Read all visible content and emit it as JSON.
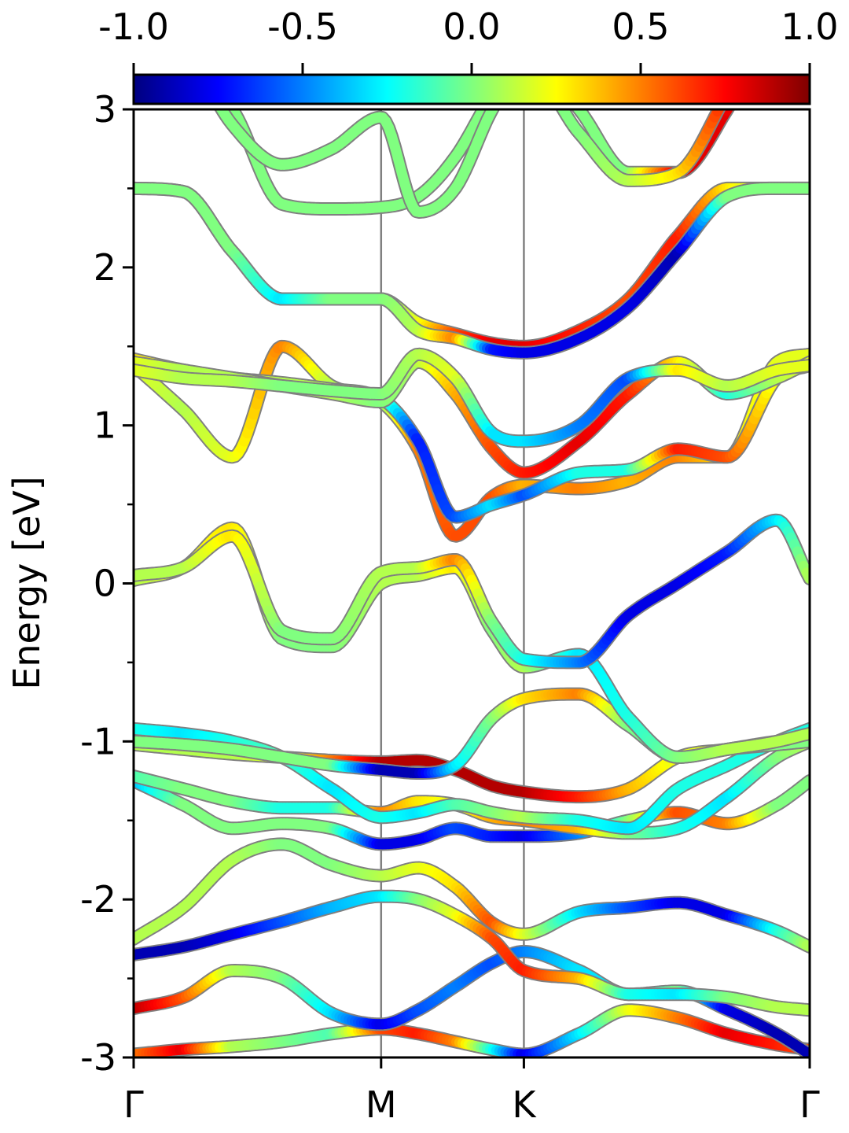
{
  "chart_data": {
    "type": "line",
    "title": "",
    "xlabel": "",
    "ylabel": "Energy [eV]",
    "ylim": [
      -3,
      3
    ],
    "yticks": [
      {
        "value": 3,
        "label": "3"
      },
      {
        "value": 2,
        "label": "2"
      },
      {
        "value": 1,
        "label": "1"
      },
      {
        "value": 0,
        "label": "0"
      },
      {
        "value": -1,
        "label": "-1"
      },
      {
        "value": -2,
        "label": "-2"
      },
      {
        "value": -3,
        "label": "-3"
      }
    ],
    "yminor": [
      2.5,
      1.5,
      0.5,
      -0.5,
      -1.5,
      -2.5
    ],
    "kpath": [
      {
        "label": "Γ",
        "pos": 0.0
      },
      {
        "label": "M",
        "pos": 1.0
      },
      {
        "label": "K",
        "pos": 1.577
      },
      {
        "label": "Γ",
        "pos": 2.732
      }
    ],
    "colorbar": {
      "colormap": "jet",
      "range": [
        -1.0,
        1.0
      ],
      "ticks": [
        {
          "value": -1.0,
          "label": "-1.0"
        },
        {
          "value": -0.5,
          "label": "-0.5"
        },
        {
          "value": 0.0,
          "label": "0.0"
        },
        {
          "value": 0.5,
          "label": "0.5"
        },
        {
          "value": 1.0,
          "label": "1.0"
        }
      ]
    },
    "colors": {
      "divider": "#808080",
      "frame": "#000000",
      "band_edge": "#808080"
    },
    "bands": [
      {
        "k": [
          0,
          0.2,
          0.4,
          0.6,
          0.8,
          1.0,
          1.15,
          1.3,
          1.45,
          1.577,
          1.8,
          2.0,
          2.2,
          2.4,
          2.6,
          2.732
        ],
        "e": [
          -2.98,
          -2.95,
          -2.93,
          -2.9,
          -2.85,
          -2.82,
          -2.85,
          -2.9,
          -2.95,
          -2.98,
          -2.85,
          -2.7,
          -2.75,
          -2.85,
          -2.92,
          -2.95
        ],
        "c": [
          0.5,
          0.8,
          0.1,
          0,
          -0.1,
          0.6,
          0.7,
          0.5,
          -0.2,
          -0.8,
          -0.3,
          0.2,
          0.5,
          0.8,
          0.7,
          0.6
        ]
      },
      {
        "k": [
          0,
          0.2,
          0.4,
          0.6,
          0.8,
          1.0,
          1.15,
          1.3,
          1.45,
          1.577,
          1.8,
          2.0,
          2.2,
          2.4,
          2.6,
          2.732
        ],
        "e": [
          -2.69,
          -2.62,
          -2.45,
          -2.5,
          -2.72,
          -2.79,
          -2.7,
          -2.55,
          -2.4,
          -2.33,
          -2.45,
          -2.6,
          -2.58,
          -2.7,
          -2.85,
          -2.98
        ],
        "c": [
          0.9,
          0.6,
          0.1,
          0,
          -0.3,
          -0.8,
          -0.6,
          -0.5,
          -0.6,
          -0.5,
          -0.3,
          -0.3,
          0,
          -0.8,
          -0.9,
          -0.9
        ]
      },
      {
        "k": [
          0,
          0.2,
          0.4,
          0.6,
          0.8,
          1.0,
          1.15,
          1.3,
          1.45,
          1.577,
          1.8,
          2.0,
          2.2,
          2.4,
          2.6,
          2.732
        ],
        "e": [
          -2.35,
          -2.3,
          -2.22,
          -2.14,
          -2.05,
          -1.98,
          -2.0,
          -2.1,
          -2.25,
          -2.45,
          -2.5,
          -2.6,
          -2.6,
          -2.62,
          -2.68,
          -2.7
        ],
        "c": [
          -0.9,
          -0.9,
          -0.8,
          -0.6,
          -0.4,
          -0.3,
          0,
          0.2,
          0.6,
          0.7,
          0.4,
          -0.2,
          -0.3,
          0,
          0.1,
          0.1
        ]
      },
      {
        "k": [
          0,
          0.2,
          0.4,
          0.6,
          0.8,
          1.0,
          1.15,
          1.3,
          1.45,
          1.577,
          1.8,
          2.0,
          2.2,
          2.4,
          2.6,
          2.732
        ],
        "e": [
          -2.25,
          -2.05,
          -1.75,
          -1.65,
          -1.78,
          -1.85,
          -1.8,
          -1.92,
          -2.15,
          -2.22,
          -2.08,
          -2.05,
          -2.02,
          -2.1,
          -2.2,
          -2.3
        ],
        "c": [
          0.1,
          0.1,
          0.1,
          0,
          0,
          0.1,
          0.2,
          0.3,
          0.6,
          0.2,
          -0.3,
          -0.6,
          -0.8,
          -0.8,
          -0.2,
          0.1
        ]
      },
      {
        "k": [
          0,
          0.2,
          0.4,
          0.6,
          0.8,
          1.0,
          1.15,
          1.3,
          1.45,
          1.577,
          1.8,
          2.0,
          2.2,
          2.4,
          2.6,
          2.732
        ],
        "e": [
          -1.25,
          -1.4,
          -1.55,
          -1.52,
          -1.55,
          -1.65,
          -1.62,
          -1.55,
          -1.6,
          -1.6,
          -1.58,
          -1.5,
          -1.45,
          -1.52,
          -1.4,
          -1.25
        ],
        "c": [
          -0.4,
          0,
          0,
          0,
          0,
          -0.8,
          -0.8,
          -0.6,
          -0.7,
          -0.8,
          -0.5,
          0,
          0.6,
          0.5,
          0,
          0
        ]
      },
      {
        "k": [
          0,
          0.2,
          0.4,
          0.6,
          0.8,
          1.0,
          1.15,
          1.3,
          1.45,
          1.577,
          1.8,
          2.0,
          2.2,
          2.4,
          2.6,
          2.732
        ],
        "e": [
          -1.22,
          -1.3,
          -1.38,
          -1.42,
          -1.42,
          -1.45,
          -1.38,
          -1.4,
          -1.48,
          -1.5,
          -1.55,
          -1.58,
          -1.55,
          -1.35,
          -1.1,
          -1.0
        ],
        "c": [
          -0.1,
          0,
          0,
          -0.2,
          -0.2,
          0.5,
          0.3,
          0.2,
          0.4,
          0.5,
          0.4,
          0,
          -0.2,
          -0.3,
          0,
          0.1
        ]
      },
      {
        "k": [
          0,
          0.2,
          0.4,
          0.6,
          0.8,
          1.0,
          1.15,
          1.3,
          1.45,
          1.577,
          1.8,
          2.0,
          2.2,
          2.4,
          2.6,
          2.732
        ],
        "e": [
          -1.02,
          -1.05,
          -1.08,
          -1.1,
          -1.12,
          -1.13,
          -1.12,
          -1.18,
          -1.28,
          -1.32,
          -1.35,
          -1.3,
          -1.1,
          -1.05,
          -1.0,
          -0.98
        ],
        "c": [
          0.1,
          0.1,
          0.1,
          0.2,
          0.5,
          0.9,
          0.9,
          0.9,
          0.9,
          0.9,
          0.7,
          0.4,
          0.2,
          0.2,
          0.1,
          0.1
        ]
      },
      {
        "k": [
          0,
          0.2,
          0.4,
          0.6,
          0.8,
          1.0,
          1.15,
          1.3,
          1.45,
          1.577,
          1.8,
          2.0,
          2.2,
          2.4,
          2.6,
          2.732
        ],
        "e": [
          -0.92,
          -0.95,
          -1.0,
          -1.1,
          -1.3,
          -1.48,
          -1.45,
          -1.4,
          -1.45,
          -1.48,
          -1.5,
          -1.55,
          -1.3,
          -1.15,
          -1.0,
          -0.92
        ],
        "c": [
          -0.2,
          -0.3,
          -0.2,
          -0.1,
          -0.3,
          -0.2,
          -0.3,
          -0.1,
          0,
          0.1,
          -0.2,
          -0.3,
          -0.2,
          -0.2,
          -0.2,
          -0.2
        ]
      },
      {
        "k": [
          0,
          0.2,
          0.4,
          0.6,
          0.8,
          1.0,
          1.15,
          1.3,
          1.45,
          1.577,
          1.8,
          2.0,
          2.2,
          2.4,
          2.6,
          2.732
        ],
        "e": [
          -1.0,
          -1.02,
          -1.05,
          -1.1,
          -1.15,
          -1.18,
          -1.2,
          -1.15,
          -0.85,
          -0.73,
          -0.7,
          -0.9,
          -1.1,
          -1.05,
          -1.02,
          -1.0
        ],
        "c": [
          0,
          0,
          0,
          0,
          0,
          -0.9,
          -0.9,
          -0.3,
          0,
          0.3,
          0.5,
          0,
          -0.1,
          0,
          0,
          0
        ]
      },
      {
        "k": [
          0,
          0.2,
          0.4,
          0.6,
          0.8,
          1.0,
          1.15,
          1.3,
          1.45,
          1.577,
          1.8,
          2.0,
          2.2,
          2.4,
          2.6,
          2.732
        ],
        "e": [
          0.02,
          0.1,
          0.35,
          -0.35,
          -0.4,
          0.0,
          0.05,
          0.1,
          -0.3,
          -0.53,
          -0.45,
          -0.85,
          -1.1,
          -1.05,
          -1.0,
          -0.95
        ],
        "c": [
          0.1,
          0.2,
          0.3,
          0,
          0,
          0.1,
          0.1,
          0.3,
          0,
          0.1,
          -0.3,
          -0.2,
          0,
          0.1,
          0.1,
          0.1
        ]
      },
      {
        "k": [
          0,
          0.2,
          0.4,
          0.6,
          0.8,
          1.0,
          1.15,
          1.3,
          1.45,
          1.577,
          1.8,
          2.0,
          2.2,
          2.4,
          2.6,
          2.732
        ],
        "e": [
          0.05,
          0.1,
          0.3,
          -0.3,
          -0.35,
          0.07,
          0.1,
          0.15,
          -0.25,
          -0.48,
          -0.5,
          -0.2,
          0.0,
          0.2,
          0.4,
          0.03
        ],
        "c": [
          0.1,
          0.1,
          0.3,
          0,
          0,
          0.1,
          0.1,
          0.5,
          0,
          -0.2,
          -0.5,
          -0.8,
          -0.8,
          -0.7,
          -0.3,
          0.1
        ]
      },
      {
        "k": [
          0,
          0.2,
          0.4,
          0.6,
          0.8,
          1.0,
          1.15,
          1.3,
          1.45,
          1.577,
          1.8,
          2.0,
          2.2,
          2.4,
          2.6,
          2.732
        ],
        "e": [
          1.38,
          1.1,
          0.8,
          1.5,
          1.25,
          1.15,
          0.85,
          0.3,
          0.55,
          0.62,
          0.6,
          0.65,
          0.8,
          0.8,
          1.4,
          1.45
        ],
        "c": [
          0.2,
          0.1,
          0.2,
          0.5,
          0.1,
          0,
          0.5,
          0.6,
          0.6,
          0.4,
          0.5,
          0.4,
          0.5,
          0.3,
          0.2,
          0.2
        ]
      },
      {
        "k": [
          0,
          0.2,
          0.4,
          0.6,
          0.8,
          1.0,
          1.15,
          1.3,
          1.45,
          1.577,
          1.8,
          2.0,
          2.2,
          2.4,
          2.6,
          2.732
        ],
        "e": [
          1.42,
          1.35,
          1.3,
          1.27,
          1.23,
          1.17,
          0.9,
          0.42,
          0.5,
          0.56,
          0.7,
          0.72,
          0.85,
          0.8,
          1.3,
          1.38
        ],
        "c": [
          0.3,
          0.2,
          0.2,
          0.1,
          0.1,
          0,
          -0.7,
          -0.6,
          -0.3,
          -0.6,
          -0.2,
          -0.2,
          0.7,
          0.6,
          0.2,
          0.3
        ]
      },
      {
        "k": [
          0,
          0.2,
          0.4,
          0.6,
          0.8,
          1.0,
          1.15,
          1.3,
          1.45,
          1.577,
          1.8,
          2.0,
          2.2,
          2.4,
          2.6,
          2.732
        ],
        "e": [
          1.4,
          1.35,
          1.3,
          1.25,
          1.2,
          1.15,
          1.4,
          1.2,
          0.85,
          0.7,
          0.9,
          1.2,
          1.4,
          1.2,
          1.3,
          1.4
        ],
        "c": [
          0.2,
          0.1,
          0.1,
          0.1,
          0.1,
          0,
          0.1,
          0.4,
          0.6,
          0.7,
          0.8,
          0.7,
          0.3,
          -0.2,
          0.1,
          0.2
        ]
      },
      {
        "k": [
          0,
          0.2,
          0.4,
          0.6,
          0.8,
          1.0,
          1.15,
          1.3,
          1.45,
          1.577,
          1.8,
          2.0,
          2.2,
          2.4,
          2.6,
          2.732
        ],
        "e": [
          1.35,
          1.3,
          1.28,
          1.25,
          1.22,
          1.2,
          1.45,
          1.3,
          0.95,
          0.9,
          1.0,
          1.3,
          1.35,
          1.25,
          1.35,
          1.38
        ],
        "c": [
          0.2,
          0.1,
          0.1,
          0,
          0,
          0,
          0.1,
          0.2,
          -0.3,
          -0.3,
          -0.5,
          -0.6,
          0.3,
          0.1,
          0.2,
          0.2
        ]
      },
      {
        "k": [
          0,
          0.2,
          0.4,
          0.6,
          0.8,
          1.0,
          1.15,
          1.3,
          1.45,
          1.577,
          1.8,
          2.0,
          2.2,
          2.4,
          2.6,
          2.732
        ],
        "e": [
          2.5,
          2.48,
          2.1,
          1.8,
          1.8,
          1.8,
          1.65,
          1.58,
          1.52,
          1.5,
          1.6,
          1.8,
          2.2,
          2.5,
          2.5,
          2.5
        ],
        "c": [
          0,
          0,
          0,
          0,
          0,
          0,
          0.2,
          0.6,
          0.8,
          0.8,
          0.7,
          0.6,
          0.7,
          0.3,
          0,
          0
        ]
      },
      {
        "k": [
          0,
          0.2,
          0.4,
          0.6,
          0.8,
          1.0,
          1.15,
          1.3,
          1.45,
          1.577,
          1.8,
          2.0,
          2.2,
          2.4,
          2.6,
          2.732
        ],
        "e": [
          2.5,
          2.48,
          2.1,
          1.8,
          1.8,
          1.8,
          1.6,
          1.55,
          1.48,
          1.46,
          1.55,
          1.75,
          2.1,
          2.45,
          2.5,
          2.5
        ],
        "c": [
          0,
          0,
          0,
          -0.3,
          0,
          0,
          0.1,
          0.5,
          -0.7,
          -0.8,
          -0.8,
          -0.8,
          -0.9,
          0,
          0,
          0
        ]
      },
      {
        "k": [
          0,
          0.2,
          0.4,
          0.6,
          0.8,
          1.0,
          1.15,
          1.3,
          1.45,
          1.577,
          1.8,
          2.0,
          2.2,
          2.4,
          2.6,
          2.732
        ],
        "e": [
          3.6,
          3.3,
          3.0,
          2.4,
          2.37,
          2.38,
          2.45,
          2.7,
          3.1,
          3.4,
          3.0,
          2.6,
          2.6,
          3.0,
          3.6,
          3.6
        ],
        "c": [
          0,
          0,
          0,
          0,
          0,
          0,
          0,
          0,
          0,
          0,
          0,
          0,
          0.8,
          0.8,
          0,
          0
        ]
      },
      {
        "k": [
          0,
          0.2,
          0.4,
          0.6,
          0.8,
          1.0,
          1.15,
          1.3,
          1.45,
          1.577,
          1.8,
          2.0,
          2.2,
          2.4,
          2.6,
          2.732
        ],
        "e": [
          3.6,
          3.4,
          2.9,
          2.65,
          2.75,
          2.95,
          2.35,
          2.5,
          3.0,
          3.3,
          2.85,
          2.55,
          2.6,
          3.1,
          3.6,
          3.6
        ],
        "c": [
          0,
          0,
          0,
          0,
          0,
          0,
          0,
          0,
          0,
          0,
          0,
          0.1,
          0.3,
          0.7,
          0,
          0
        ]
      }
    ]
  }
}
